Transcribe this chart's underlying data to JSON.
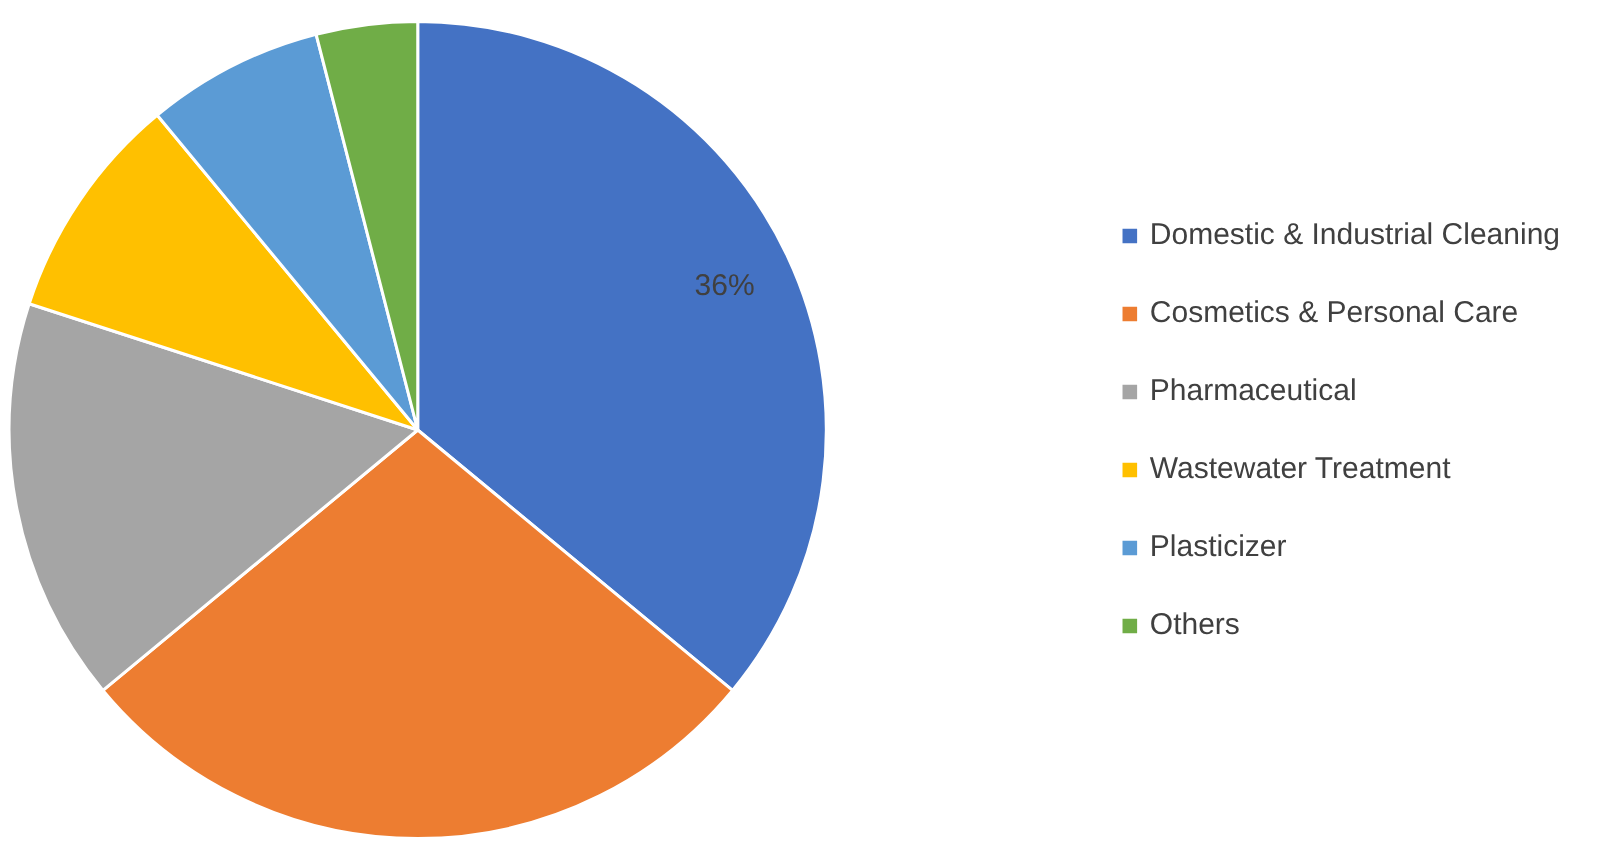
{
  "chart_data": {
    "type": "pie",
    "categories": [
      "Domestic & Industrial Cleaning",
      "Cosmetics & Personal Care",
      "Pharmaceutical",
      "Wastewater Treatment",
      "Plasticizer",
      "Others"
    ],
    "values": [
      36,
      28,
      16,
      9,
      7,
      4
    ],
    "colors": [
      "#4472c4",
      "#ed7d31",
      "#a5a5a5",
      "#ffc000",
      "#5b9bd5",
      "#70ad47"
    ],
    "value_labels": [
      "36%",
      null,
      null,
      null,
      null,
      null
    ],
    "legend": "right"
  }
}
